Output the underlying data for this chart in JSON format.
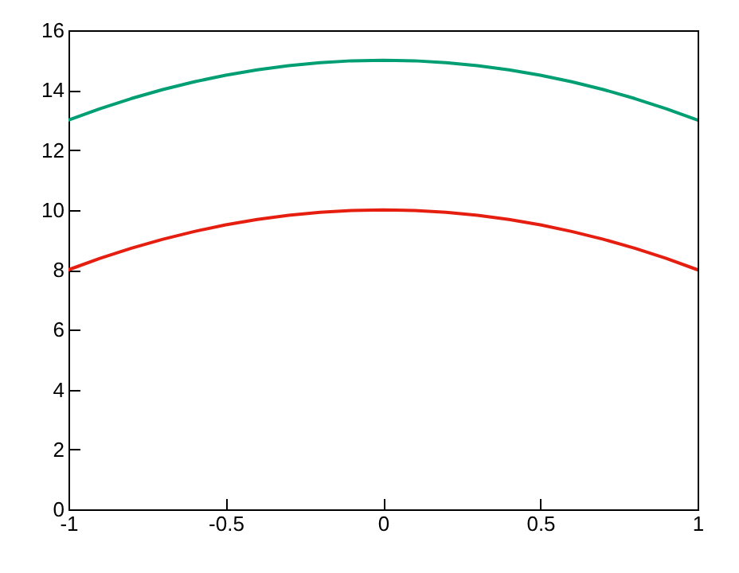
{
  "chart_data": {
    "type": "line",
    "x": [
      -1,
      -0.9,
      -0.8,
      -0.7,
      -0.6,
      -0.5,
      -0.4,
      -0.3,
      -0.2,
      -0.1,
      0,
      0.1,
      0.2,
      0.3,
      0.4,
      0.5,
      0.6,
      0.7,
      0.8,
      0.9,
      1
    ],
    "series": [
      {
        "color": "#009e73",
        "values": [
          13,
          13.38,
          13.72,
          14.02,
          14.28,
          14.5,
          14.68,
          14.82,
          14.92,
          14.98,
          15,
          14.98,
          14.92,
          14.82,
          14.68,
          14.5,
          14.28,
          14.02,
          13.72,
          13.38,
          13
        ]
      },
      {
        "color": "#e51e10",
        "values": [
          8,
          8.38,
          8.72,
          9.02,
          9.28,
          9.5,
          9.68,
          9.82,
          9.92,
          9.98,
          10,
          9.98,
          9.92,
          9.82,
          9.68,
          9.5,
          9.28,
          9.02,
          8.72,
          8.38,
          8
        ]
      }
    ],
    "xlim": [
      -1,
      1
    ],
    "xticks": [
      -1,
      -0.5,
      0,
      0.5,
      1
    ],
    "ylim": [
      0,
      16
    ],
    "yticks": [
      0,
      2,
      4,
      6,
      8,
      10,
      12,
      14,
      16
    ],
    "grid": false,
    "marker": "none",
    "line_style": "solid"
  }
}
